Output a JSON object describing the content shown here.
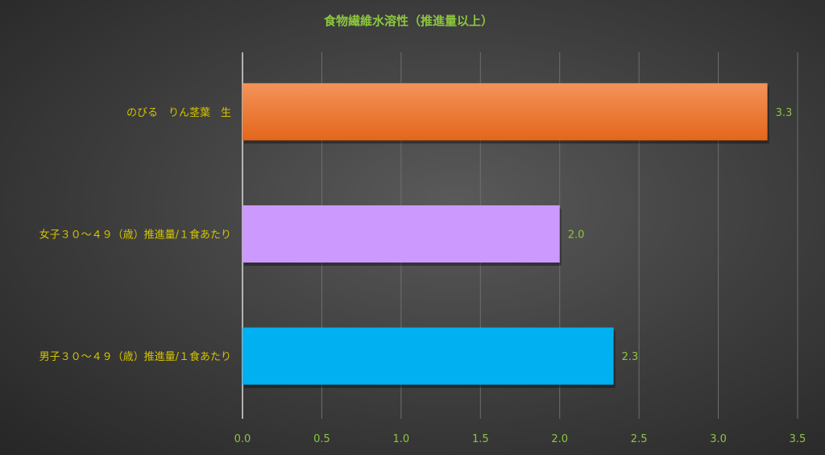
{
  "chart_data": {
    "type": "bar",
    "orientation": "horizontal",
    "title": "食物繊維水溶性（推進量以上）",
    "categories": [
      "のびる　りん茎葉　生",
      "女子３０～４９（歳）推進量/１食あたり",
      "男子３０～４９（歳）推進量/１食あたり"
    ],
    "values": [
      3.31,
      2.0,
      2.34
    ],
    "data_labels": [
      "3.3",
      "2.0",
      "2.3"
    ],
    "colors": [
      "#ed7125",
      "#cc99ff",
      "#00b0f0"
    ],
    "xlim": [
      0,
      3.5
    ],
    "xticks": [
      "0.0",
      "0.5",
      "1.0",
      "1.5",
      "2.0",
      "2.5",
      "3.0",
      "3.5"
    ],
    "grid": true,
    "title_color": "#8cc63f",
    "category_label_color": "#d4c400",
    "tick_label_color": "#8cc63f"
  }
}
